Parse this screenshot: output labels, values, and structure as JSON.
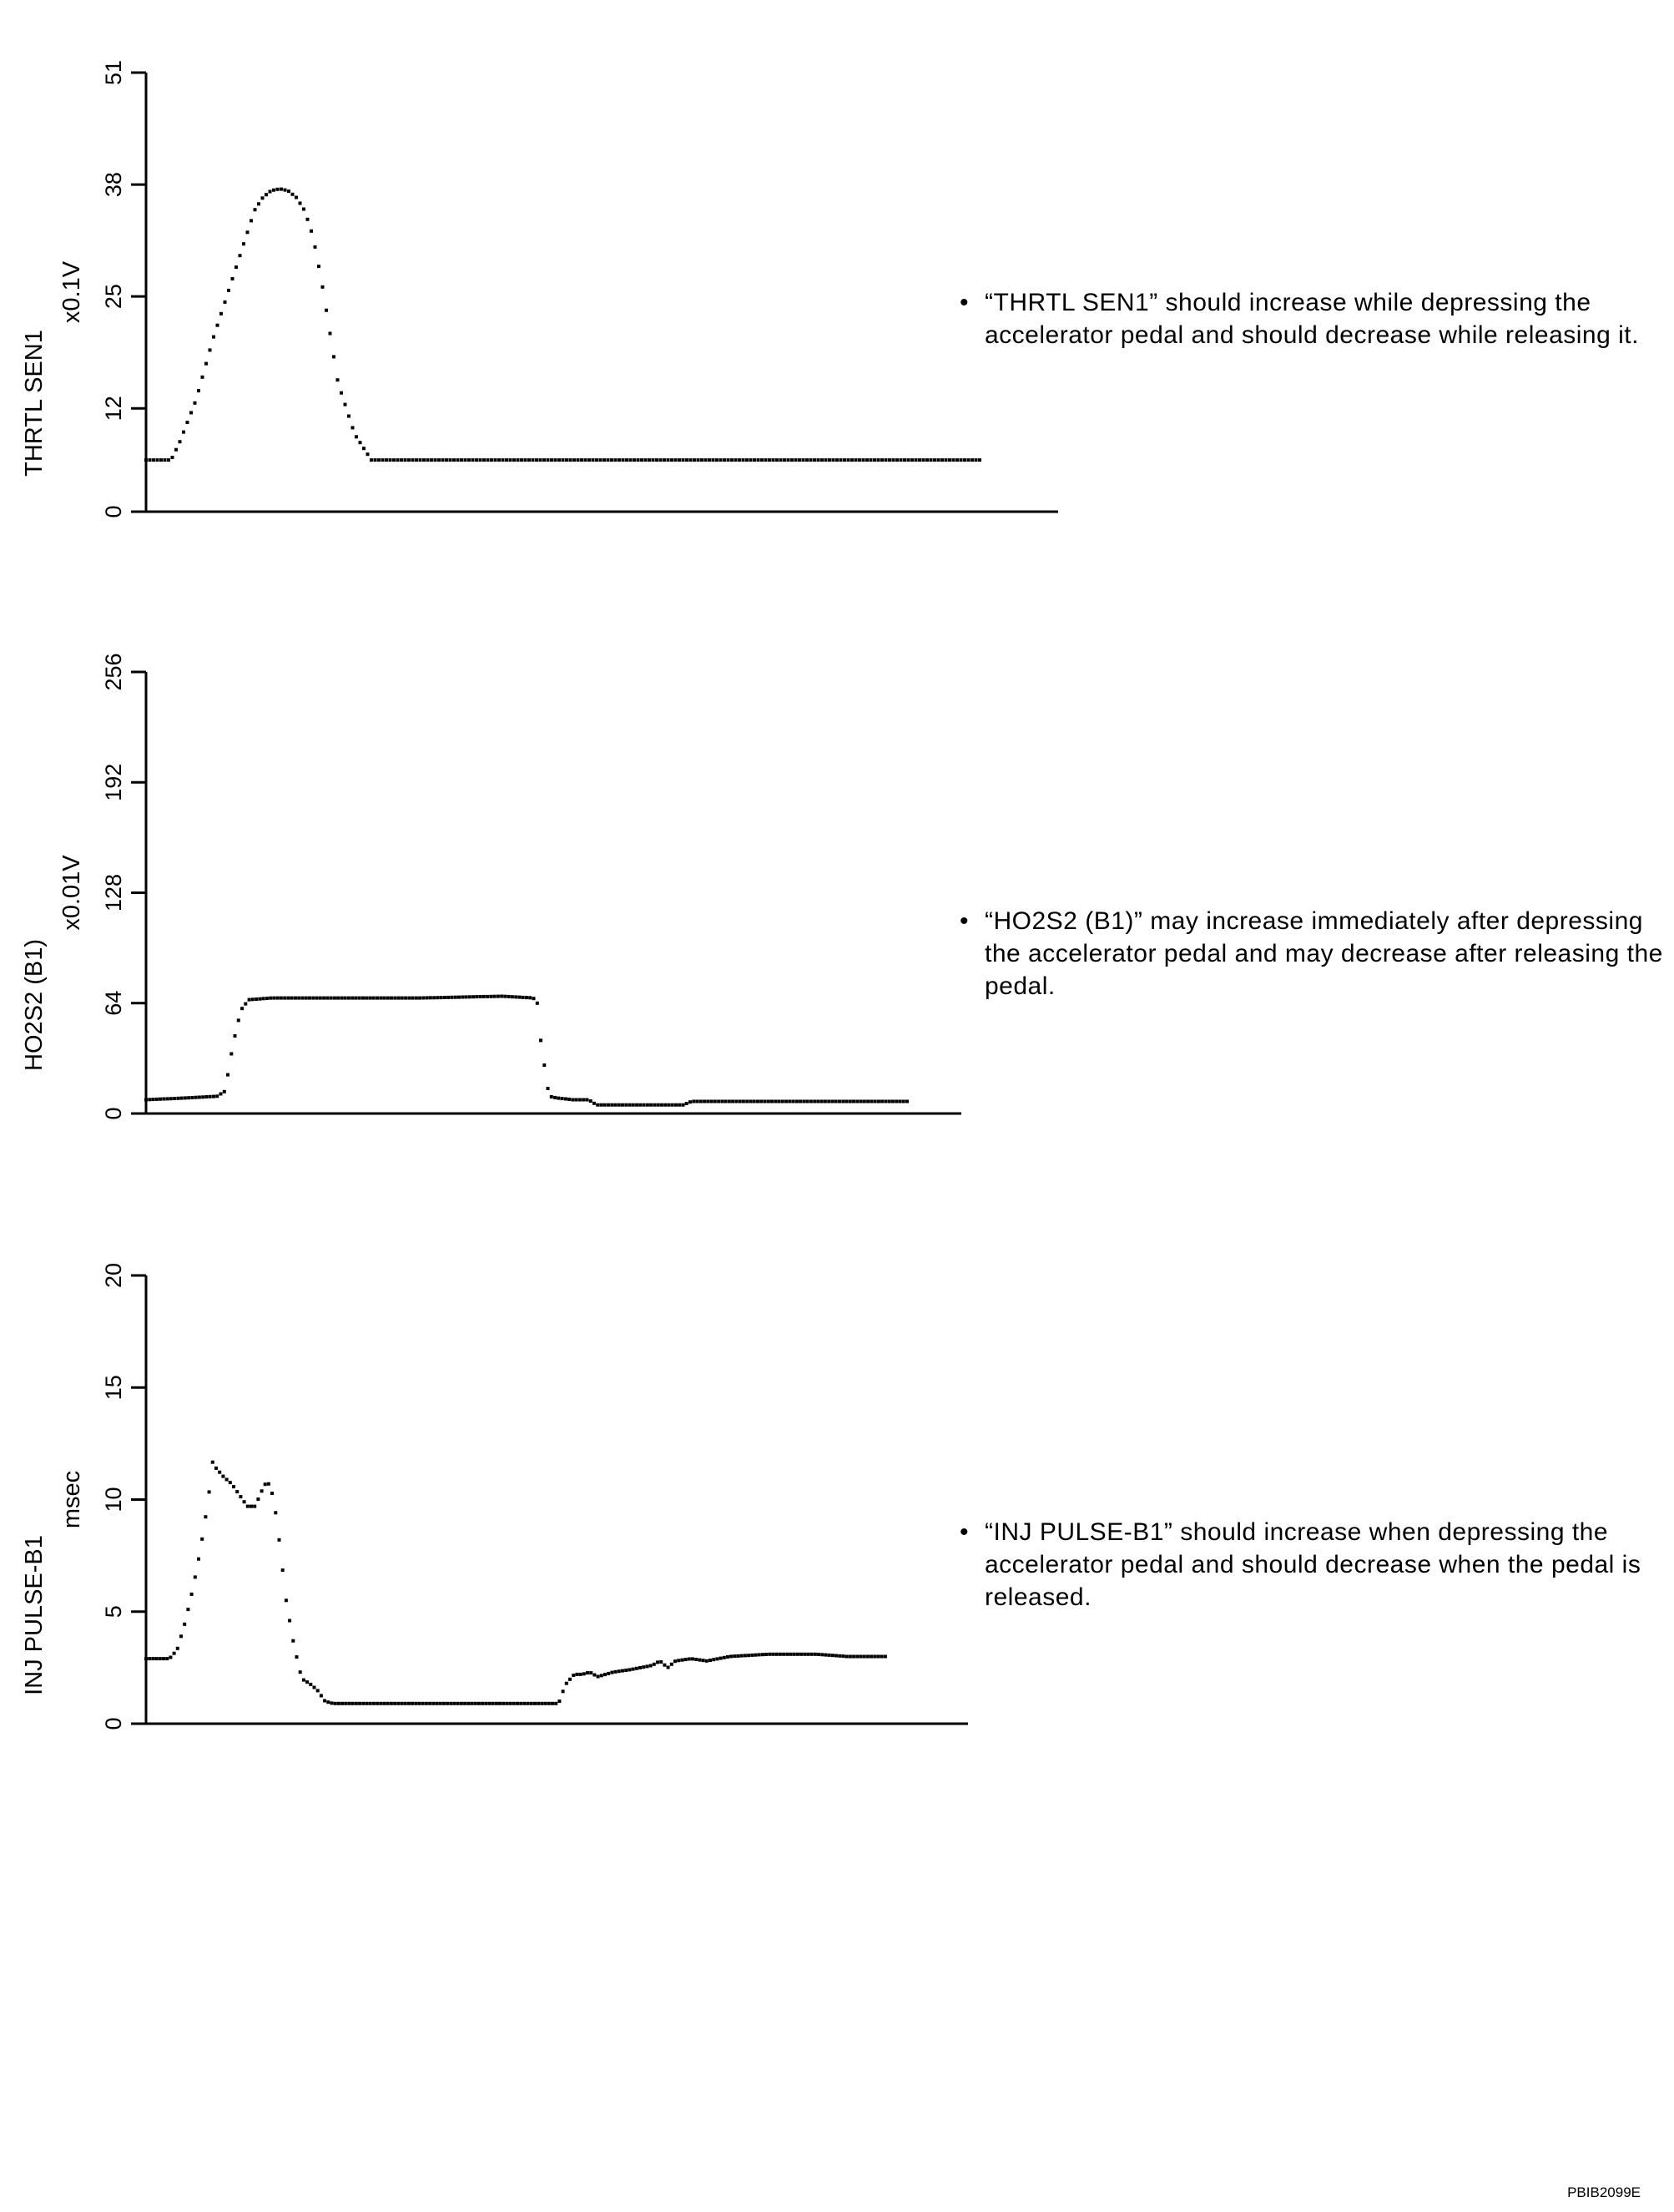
{
  "charts": [
    {
      "name": "THRTL SEN1",
      "unit": "x0.1V",
      "yticks": [
        0,
        12,
        25,
        38,
        51
      ],
      "note": "“THRTL SEN1” should increase while depressing the accelerator pedal and should decrease while releasing it."
    },
    {
      "name": "HO2S2 (B1)",
      "unit": "x0.01V",
      "yticks": [
        0,
        64,
        128,
        192,
        256
      ],
      "note": "“HO2S2 (B1)” may increase immediately after depressing the accelerator pedal and may decrease after releasing the pedal."
    },
    {
      "name": "INJ PULSE-B1",
      "unit": "msec",
      "yticks": [
        0,
        5,
        10,
        15,
        20
      ],
      "note": "“INJ PULSE-B1” should increase when depressing the accelerator pedal and should decrease when the pedal is released."
    }
  ],
  "chart_data": [
    {
      "type": "scatter",
      "title": "",
      "ylabel": "THRTL SEN1",
      "unit": "x0.1V",
      "ylim": [
        0,
        51
      ],
      "xlim": [
        0,
        100
      ],
      "yticks": [
        0,
        12,
        25,
        38,
        51
      ],
      "grid": false,
      "series": [
        {
          "x": [
            0,
            3,
            4,
            6,
            8,
            10,
            12,
            13,
            14,
            15,
            16,
            17,
            18,
            19,
            20,
            21,
            22,
            23,
            25,
            27,
            100
          ],
          "y": [
            6,
            6,
            8,
            13,
            20,
            26,
            32,
            35,
            36.5,
            37.3,
            37.5,
            37.3,
            36.5,
            35,
            32,
            27,
            21,
            15,
            9,
            6,
            6
          ]
        }
      ]
    },
    {
      "type": "scatter",
      "title": "",
      "ylabel": "HO2S2 (B1)",
      "unit": "x0.01V",
      "ylim": [
        0,
        256
      ],
      "xlim": [
        0,
        100
      ],
      "yticks": [
        0,
        64,
        128,
        192,
        256
      ],
      "grid": false,
      "series": [
        {
          "x": [
            0,
            5,
            9,
            10,
            11,
            12,
            13,
            16,
            25,
            35,
            45,
            49,
            49.5,
            50,
            51,
            52,
            54,
            56,
            57,
            59,
            65,
            68,
            69,
            75,
            85,
            96.5
          ],
          "y": [
            8,
            9,
            10,
            13,
            40,
            60,
            66,
            67,
            67,
            67,
            68,
            67,
            64,
            40,
            10,
            9,
            8,
            8,
            5,
            5,
            5,
            5,
            7,
            7,
            7,
            7
          ]
        }
      ]
    },
    {
      "type": "scatter",
      "title": "",
      "ylabel": "INJ PULSE-B1",
      "unit": "msec",
      "ylim": [
        0,
        20
      ],
      "xlim": [
        0,
        100
      ],
      "yticks": [
        0,
        5,
        10,
        15,
        20
      ],
      "grid": false,
      "series": [
        {
          "x": [
            0,
            3,
            4,
            5,
            6,
            7,
            8,
            8.5,
            9,
            10,
            11,
            12,
            13,
            14,
            15,
            15.5,
            16,
            16.5,
            17,
            17.5,
            18,
            19,
            20,
            21,
            22,
            23,
            24,
            26,
            30,
            40,
            50,
            53,
            53.5,
            54,
            55,
            56,
            57,
            58,
            60,
            62,
            65,
            66,
            67,
            68,
            70,
            72,
            75,
            80,
            85,
            86,
            90,
            95
          ],
          "y": [
            2.9,
            2.9,
            3.3,
            4.5,
            6,
            7.8,
            10,
            11.7,
            11.4,
            11,
            10.7,
            10.2,
            9.7,
            9.7,
            10.5,
            10.8,
            10.6,
            9.8,
            8.5,
            7,
            5.5,
            3.5,
            2,
            1.8,
            1.5,
            1,
            0.9,
            0.9,
            0.9,
            0.9,
            0.9,
            0.9,
            1.4,
            1.8,
            2.2,
            2.2,
            2.3,
            2.1,
            2.3,
            2.4,
            2.6,
            2.8,
            2.5,
            2.8,
            2.9,
            2.8,
            3,
            3.1,
            3.1,
            3.1,
            3,
            3
          ]
        }
      ]
    }
  ],
  "footer": {
    "reference": "PBIB2099E"
  },
  "style": {
    "ink": "#000000",
    "background": "#ffffff"
  }
}
